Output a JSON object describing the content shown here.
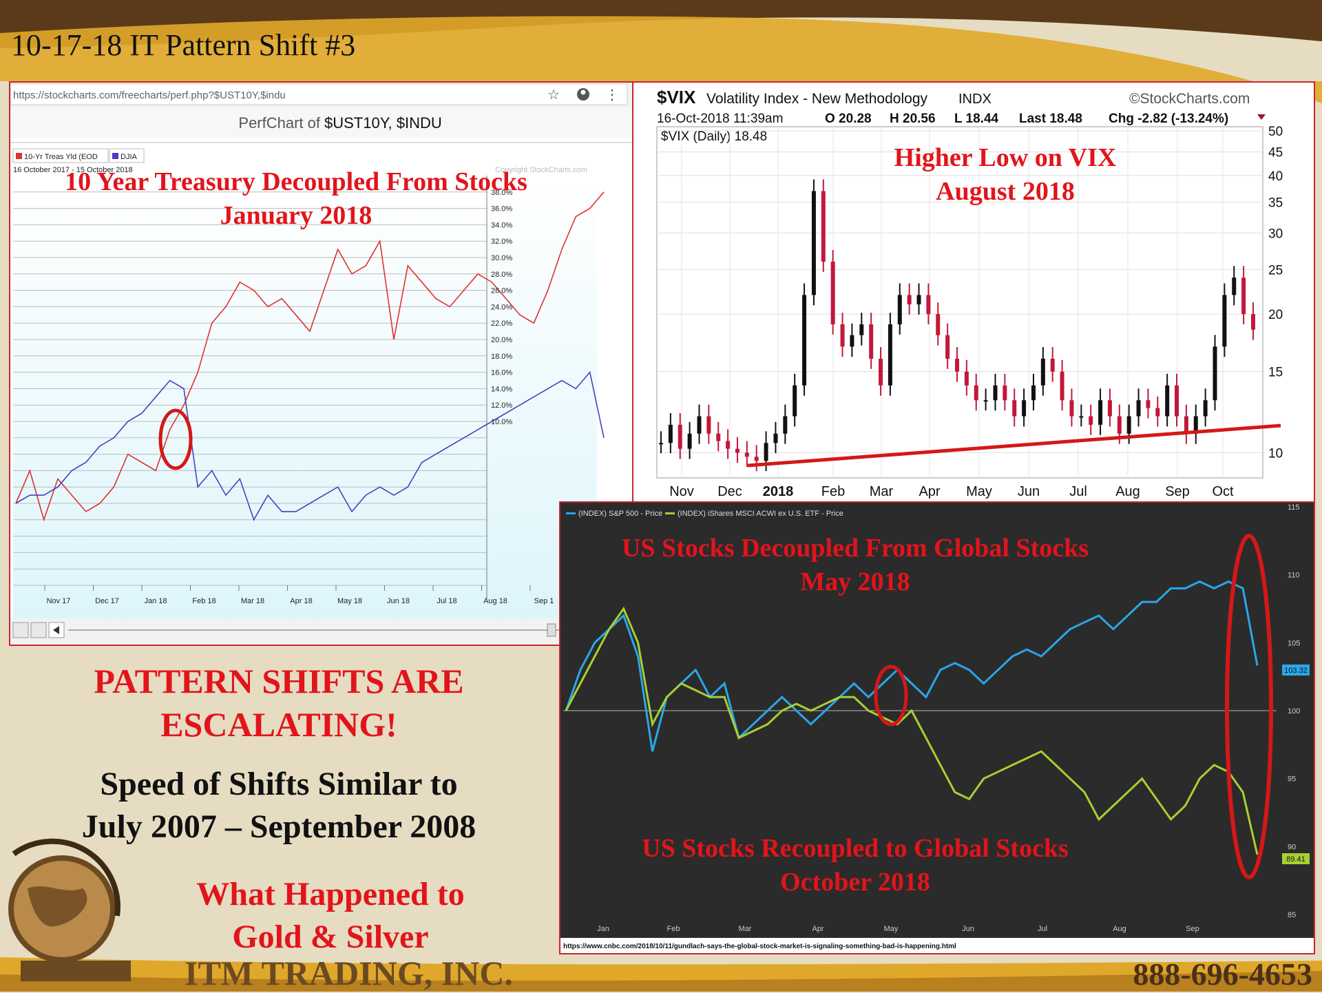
{
  "slide": {
    "title": "10-17-18 IT Pattern Shift #3",
    "headline_1": "PATTERN SHIFTS ARE",
    "headline_2": "ESCALATING!",
    "subline_1": "Speed of Shifts Similar to",
    "subline_2": "July 2007 – September 2008",
    "question_1": "What Happened to",
    "question_2": "Gold & Silver",
    "company": "ITM TRADING, INC.",
    "phone": "888-696-4653",
    "colors": {
      "accent_red": "#e2141b",
      "banner_brown": "#5a3a18",
      "banner_gold": "#e0a82a"
    }
  },
  "perfchart": {
    "url": "https://stockcharts.com/freecharts/perf.php?$UST10Y,$indu",
    "title_prefix": "PerfChart of",
    "title_symbols": "$UST10Y, $INDU",
    "legend": [
      "10-Yr Treas Yld (EOD",
      "DJIA"
    ],
    "daterange": "16 October 2017 - 15 October 2018",
    "copyright": "Copyright StockCharts.com",
    "annotation_1": "10 Year Treasury Decoupled From Stocks",
    "annotation_2": "January 2018",
    "icons": [
      "star-icon",
      "account-icon",
      "menu-dots-icon"
    ]
  },
  "vix": {
    "symbol": "$VIX",
    "name": "Volatility Index - New Methodology",
    "exchange": "INDX",
    "brand": "©StockCharts.com",
    "quote_line": "16-Oct-2018 11:39am",
    "open": "O 20.28",
    "high": "H 20.56",
    "low": "L 18.44",
    "last": "Last 18.48",
    "chg": "Chg -2.82 (-13.24%)",
    "series_label": "$VIX (Daily) 18.48",
    "annotation_1": "Higher Low on VIX",
    "annotation_2": "August 2018"
  },
  "cnbc": {
    "legend_sp": "(INDEX) S&P 500 - Price",
    "legend_acwi": "(INDEX) iShares MSCI ACWI ex U.S. ETF - Price",
    "annotation_top_1": "US Stocks Decoupled From Global Stocks",
    "annotation_top_2": "May 2018",
    "annotation_bottom_1": "US Stocks Recoupled to Global Stocks",
    "annotation_bottom_2": "October 2018",
    "source_url": "https://www.cnbc.com/2018/10/11/gundlach-says-the-global-stock-market-is-signaling-something-bad-is-happening.html",
    "sp_last_label": "103.32",
    "acwi_last_label": "89.41"
  },
  "chart_data": [
    {
      "type": "line",
      "id": "perfchart",
      "title": "PerfChart of $UST10Y, $INDU",
      "x_ticks": [
        "Nov 17",
        "Dec 17",
        "Jan 18",
        "Feb 18",
        "Mar 18",
        "Apr 18",
        "May 18",
        "Jun 18",
        "Jul 18",
        "Aug 18",
        "Sep 1"
      ],
      "y_ticks": [
        "38.0%",
        "36.0%",
        "34.0%",
        "32.0%",
        "30.0%",
        "28.0%",
        "26.0%",
        "24.0%",
        "22.0%",
        "20.0%",
        "18.0%",
        "16.0%",
        "14.0%",
        "12.0%",
        "10.0%"
      ],
      "ylim": [
        -10,
        40
      ],
      "series": [
        {
          "name": "10-Yr Treas Yld (EOD",
          "color": "#e03030",
          "values": [
            0,
            4,
            -2,
            3,
            1,
            -1,
            0,
            2,
            6,
            5,
            4,
            9,
            12,
            16,
            22,
            24,
            27,
            26,
            24,
            25,
            23,
            21,
            26,
            31,
            28,
            29,
            32,
            20,
            29,
            27,
            25,
            24,
            26,
            28,
            27,
            25,
            23,
            22,
            26,
            31,
            35,
            36,
            38
          ]
        },
        {
          "name": "DJIA",
          "color": "#4a3fc0",
          "values": [
            0,
            1,
            1,
            2,
            4,
            5,
            7,
            8,
            10,
            11,
            13,
            15,
            14,
            2,
            4,
            1,
            3,
            -2,
            1,
            -1,
            -1,
            0,
            1,
            2,
            -1,
            1,
            2,
            1,
            2,
            5,
            6,
            7,
            8,
            9,
            10,
            11,
            12,
            13,
            14,
            15,
            14,
            16,
            8
          ]
        }
      ]
    },
    {
      "type": "candlestick",
      "id": "vix",
      "title": "$VIX Volatility Index - New Methodology",
      "x_ticks": [
        "Nov",
        "Dec",
        "2018",
        "Feb",
        "Mar",
        "Apr",
        "May",
        "Jun",
        "Jul",
        "Aug",
        "Sep",
        "Oct"
      ],
      "y_ticks": [
        10,
        15,
        20,
        25,
        30,
        35,
        40,
        45,
        50
      ],
      "scale": "log",
      "ylim": [
        9,
        50
      ],
      "values": [
        10.5,
        11.5,
        10.2,
        11,
        12,
        11,
        10.6,
        10.2,
        10,
        9.8,
        9.6,
        10.5,
        11,
        12,
        14,
        22,
        37,
        26,
        19,
        17,
        18,
        19,
        16,
        14,
        19,
        22,
        21,
        22,
        20,
        18,
        16,
        15,
        14,
        13,
        13,
        14,
        13,
        12,
        13,
        14,
        16,
        15,
        13,
        12,
        12,
        11.5,
        13,
        12,
        11,
        12,
        13,
        12.5,
        12,
        14,
        12,
        11,
        12,
        13,
        17,
        22,
        24,
        20,
        18.5
      ]
    },
    {
      "type": "line",
      "id": "cnbc",
      "x_ticks": [
        "Jan",
        "Feb",
        "Mar",
        "Apr",
        "May",
        "Jun",
        "Jul",
        "Aug",
        "Sep"
      ],
      "y_ticks": [
        85,
        90,
        95,
        100,
        105,
        110,
        115
      ],
      "ylim": [
        85,
        115
      ],
      "series": [
        {
          "name": "(INDEX) S&P 500 - Price",
          "color": "#2aa7e8",
          "values": [
            100,
            103,
            105,
            106,
            107,
            104,
            97,
            101,
            102,
            103,
            101,
            102,
            98,
            99,
            100,
            101,
            100,
            99,
            100,
            101,
            102,
            101,
            102,
            103,
            102,
            101,
            103,
            103.5,
            103,
            102,
            103,
            104,
            104.5,
            104,
            105,
            106,
            106.5,
            107,
            106,
            107,
            108,
            108,
            109,
            109,
            109.5,
            109,
            109.5,
            109,
            103.32
          ]
        },
        {
          "name": "(INDEX) iShares MSCI ACWI ex U.S. ETF - Price",
          "color": "#a8d030",
          "values": [
            100,
            102,
            104,
            106,
            107.5,
            105,
            99,
            101,
            102,
            101.5,
            101,
            101,
            98,
            98.5,
            99,
            100,
            100.5,
            100,
            100.5,
            101,
            101,
            100,
            99.5,
            99,
            100,
            98,
            96,
            94,
            93.5,
            95,
            95.5,
            96,
            96.5,
            97,
            96,
            95,
            94,
            92,
            93,
            94,
            95,
            93.5,
            92,
            93,
            95,
            96,
            95.5,
            94,
            89.41
          ]
        }
      ]
    }
  ]
}
